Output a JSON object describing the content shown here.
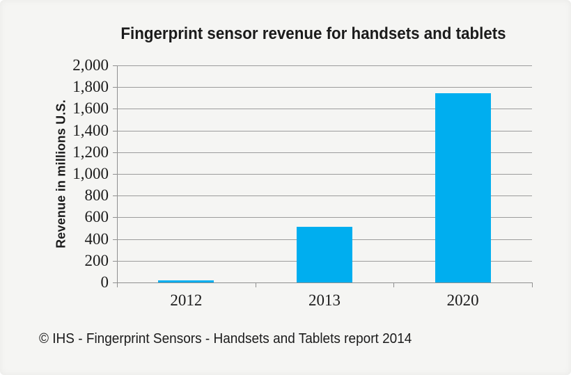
{
  "page": {
    "background": "#f5f5f3"
  },
  "header": {
    "title": "Fingerprint sensor revenue for handsets and tablets"
  },
  "footer": {
    "text": "© IHS - Fingerprint Sensors - Handsets and Tablets report 2014"
  },
  "colors": {
    "bar": "#00AEEF",
    "grid": "#9b9b9b",
    "axis": "#8f8f8f",
    "text": "#1b1b1b"
  },
  "chart_data": {
    "type": "bar",
    "title": "Fingerprint sensor revenue for handsets and tablets",
    "categories": [
      "2012",
      "2013",
      "2020"
    ],
    "values": [
      20,
      510,
      1745
    ],
    "xlabel": "",
    "ylabel": "Revenue in millions U.S.",
    "ylim": [
      0,
      2000
    ],
    "ytick_step": 200,
    "ytick_labels": [
      "0",
      "200",
      "400",
      "600",
      "800",
      "1,000",
      "1,200",
      "1,400",
      "1,600",
      "1,800",
      "2,000"
    ],
    "grid": true,
    "legend": false,
    "source": "© IHS - Fingerprint Sensors - Handsets and Tablets report 2014"
  }
}
